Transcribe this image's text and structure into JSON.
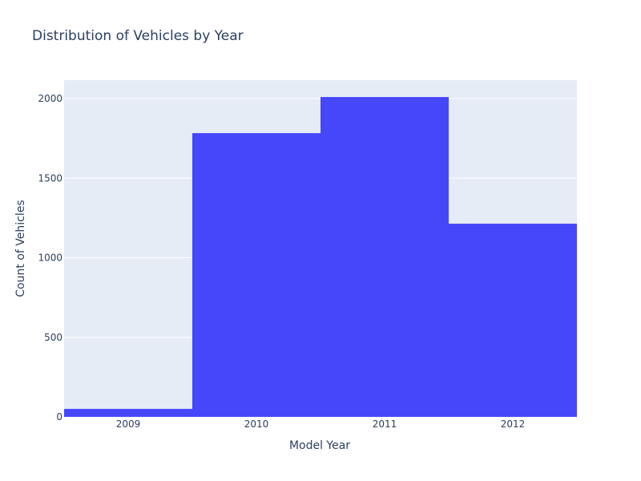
{
  "chart_data": {
    "type": "bar",
    "title": "Distribution of Vehicles by Year",
    "xlabel": "Model Year",
    "ylabel": "Count of Vehicles",
    "categories": [
      "2009",
      "2010",
      "2011",
      "2012"
    ],
    "values": [
      50,
      1783,
      2010,
      1214
    ],
    "ylim": [
      0,
      2116
    ],
    "yticks": [
      0,
      500,
      1000,
      1500,
      2000
    ],
    "ytick_labels": [
      "0",
      "500",
      "1000",
      "1500",
      "2000"
    ],
    "grid": true,
    "legend": "none",
    "bar_color": "#4646fb",
    "plot_bg": "#e5ecf6"
  }
}
